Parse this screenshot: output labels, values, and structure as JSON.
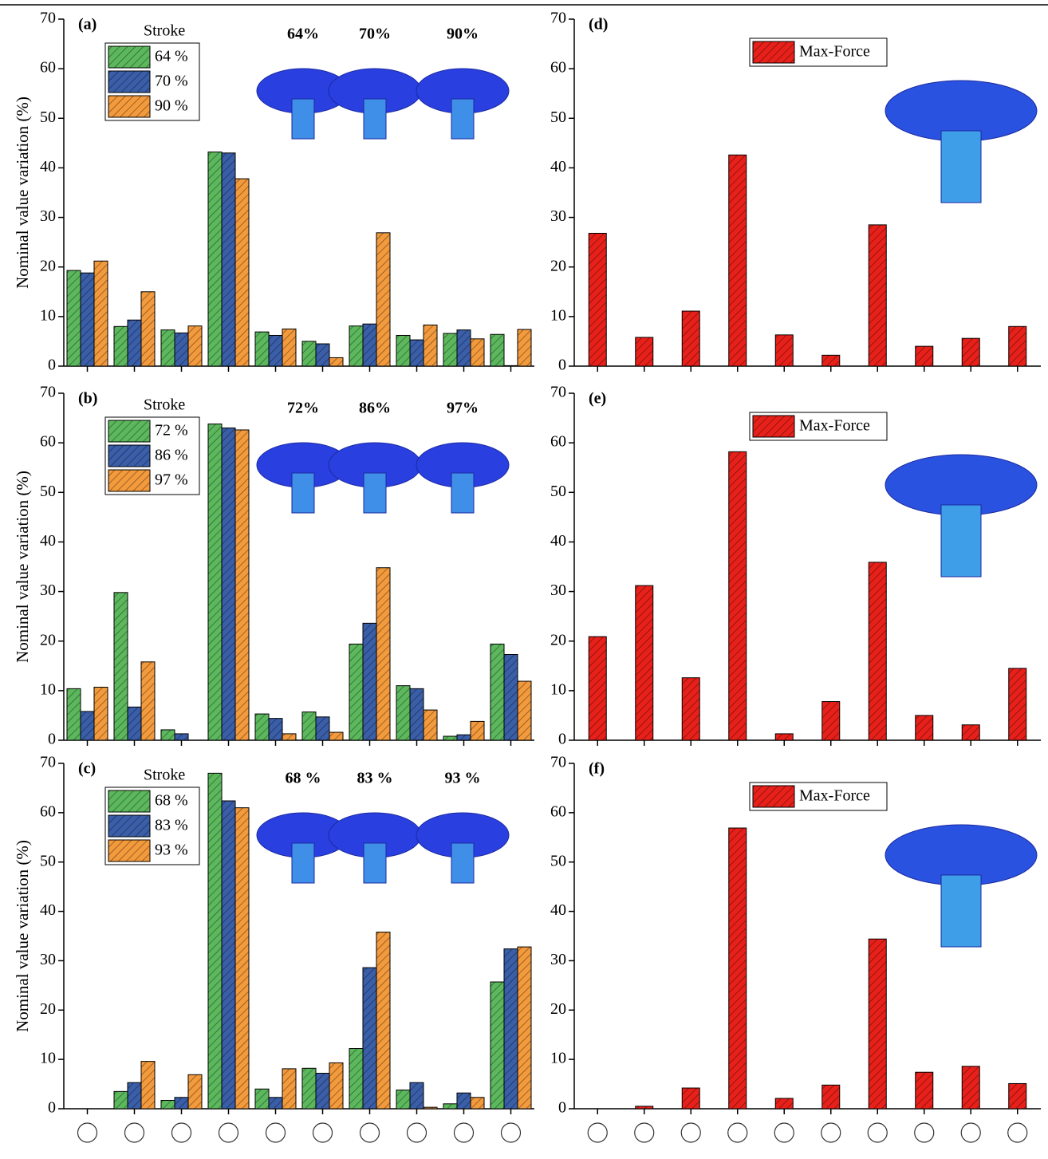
{
  "chart_data": [
    {
      "type": "bar",
      "label": "(a)",
      "ylabel": "Nominal value variation (%)",
      "legend_title": "Stroke",
      "legend": "upper left",
      "annotations": [
        "64%",
        "70%",
        "90%"
      ],
      "categories": [
        null,
        null,
        null,
        null,
        null,
        null,
        null,
        null,
        null,
        null
      ],
      "series": [
        {
          "name": "64 %",
          "color": "#5cb85c",
          "values": [
            19.3,
            8,
            7.3,
            43.2,
            6.9,
            5,
            8.1,
            6.2,
            6.6,
            6.4
          ]
        },
        {
          "name": "70 %",
          "color": "#3a5ea8",
          "values": [
            18.8,
            9.3,
            6.7,
            43,
            6.2,
            4.5,
            8.5,
            5.3,
            7.3,
            0.1
          ]
        },
        {
          "name": "90 %",
          "color": "#f39a3c",
          "values": [
            21.2,
            15,
            8.1,
            37.8,
            7.5,
            1.7,
            26.9,
            8.3,
            5.5,
            7.4
          ]
        }
      ],
      "ylim": [
        0,
        70
      ],
      "yticks": [
        0,
        10,
        20,
        30,
        40,
        50,
        60,
        70
      ]
    },
    {
      "type": "bar",
      "label": "(b)",
      "ylabel": "Nominal value variation (%)",
      "legend_title": "Stroke",
      "legend": "upper left",
      "annotations": [
        "72%",
        "86%",
        "97%"
      ],
      "categories": [
        null,
        null,
        null,
        null,
        null,
        null,
        null,
        null,
        null,
        null
      ],
      "series": [
        {
          "name": "72 %",
          "color": "#5cb85c",
          "values": [
            10.4,
            29.8,
            2.1,
            63.8,
            5.3,
            5.7,
            19.4,
            11,
            0.8,
            19.4
          ]
        },
        {
          "name": "86 %",
          "color": "#3a5ea8",
          "values": [
            5.8,
            6.7,
            1.3,
            63,
            4.4,
            4.7,
            23.6,
            10.4,
            1.1,
            17.3
          ]
        },
        {
          "name": "97 %",
          "color": "#f39a3c",
          "values": [
            10.7,
            15.8,
            0,
            62.6,
            1.3,
            1.6,
            34.8,
            6.1,
            3.8,
            11.9
          ]
        }
      ],
      "ylim": [
        0,
        70
      ],
      "yticks": [
        0,
        10,
        20,
        30,
        40,
        50,
        60,
        70
      ]
    },
    {
      "type": "bar",
      "label": "(c)",
      "ylabel": "Nominal value variation (%)",
      "legend_title": "Stroke",
      "legend": "upper left",
      "annotations": [
        "68 %",
        "83 %",
        "93 %"
      ],
      "categories": [
        null,
        null,
        null,
        null,
        null,
        null,
        null,
        null,
        null,
        null
      ],
      "series": [
        {
          "name": "68 %",
          "color": "#5cb85c",
          "values": [
            0,
            3.5,
            1.7,
            68,
            4,
            8.2,
            12.2,
            3.8,
            1,
            25.7
          ]
        },
        {
          "name": "83 %",
          "color": "#3a5ea8",
          "values": [
            0,
            5.3,
            2.3,
            62.4,
            2.3,
            7.2,
            28.6,
            5.3,
            3.2,
            32.4
          ]
        },
        {
          "name": "93 %",
          "color": "#f39a3c",
          "values": [
            0,
            9.6,
            6.9,
            61,
            8.1,
            9.3,
            35.8,
            0.3,
            2.3,
            32.8
          ]
        }
      ],
      "ylim": [
        0,
        70
      ],
      "yticks": [
        0,
        10,
        20,
        30,
        40,
        50,
        60,
        70
      ]
    },
    {
      "type": "bar",
      "label": "(d)",
      "legend": "upper center",
      "categories": [
        null,
        null,
        null,
        null,
        null,
        null,
        null,
        null,
        null,
        null
      ],
      "series": [
        {
          "name": "Max-Force",
          "color": "#e8201a",
          "values": [
            26.8,
            5.8,
            11.1,
            42.6,
            6.3,
            2.2,
            28.5,
            4,
            5.6,
            8
          ]
        }
      ],
      "ylim": [
        0,
        70
      ],
      "yticks": [
        0,
        10,
        20,
        30,
        40,
        50,
        60,
        70
      ]
    },
    {
      "type": "bar",
      "label": "(e)",
      "legend": "upper center",
      "categories": [
        null,
        null,
        null,
        null,
        null,
        null,
        null,
        null,
        null,
        null
      ],
      "series": [
        {
          "name": "Max-Force",
          "color": "#e8201a",
          "values": [
            20.9,
            31.2,
            12.6,
            58.2,
            1.3,
            7.8,
            35.9,
            5,
            3.1,
            14.5
          ]
        }
      ],
      "ylim": [
        0,
        70
      ],
      "yticks": [
        0,
        10,
        20,
        30,
        40,
        50,
        60,
        70
      ]
    },
    {
      "type": "bar",
      "label": "(f)",
      "legend": "upper center",
      "categories": [
        null,
        null,
        null,
        null,
        null,
        null,
        null,
        null,
        null,
        null
      ],
      "series": [
        {
          "name": "Max-Force",
          "color": "#e8201a",
          "values": [
            0,
            0.5,
            4.2,
            56.9,
            2.1,
            4.8,
            34.4,
            7.4,
            8.6,
            5.1
          ]
        }
      ],
      "ylim": [
        0,
        70
      ],
      "yticks": [
        0,
        10,
        20,
        30,
        40,
        50,
        60,
        70
      ]
    }
  ]
}
